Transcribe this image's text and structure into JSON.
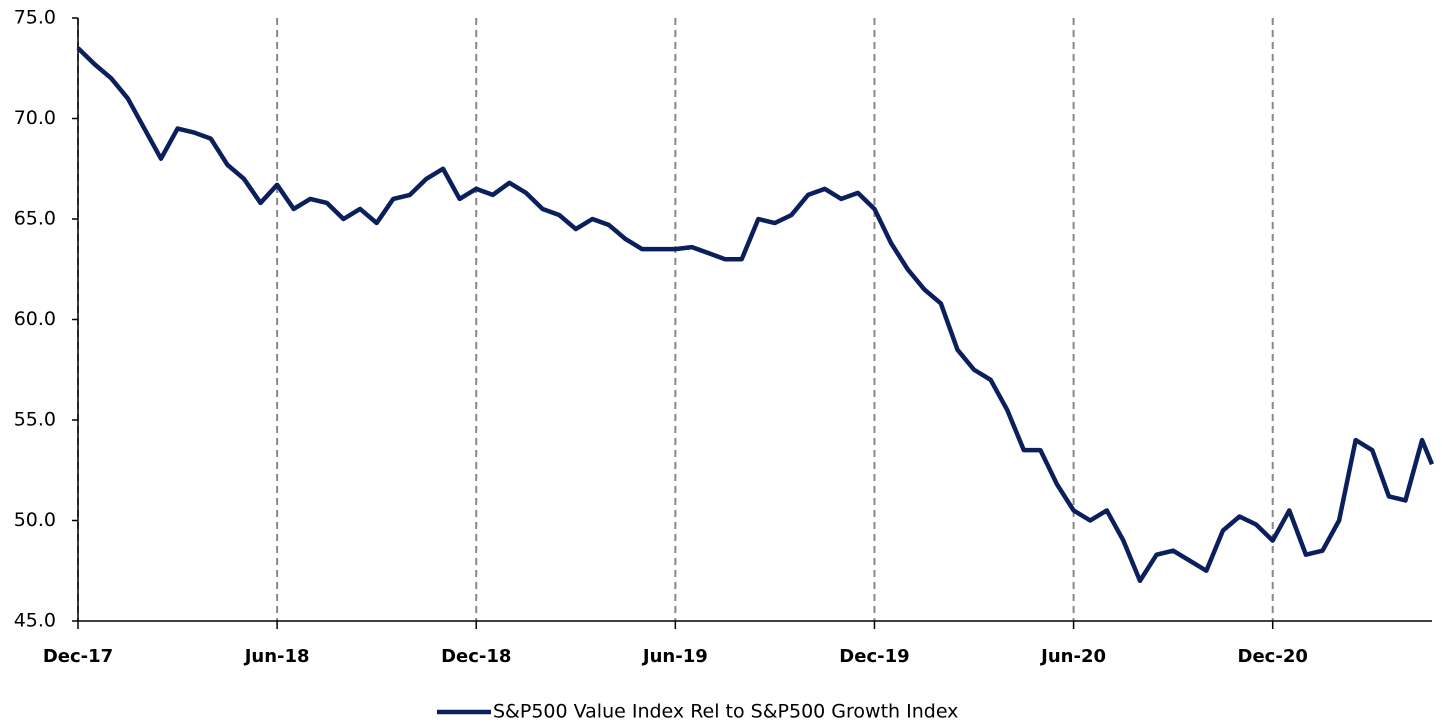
{
  "chart_data": {
    "type": "line",
    "x": [
      0,
      0.5,
      1,
      1.5,
      2,
      2.5,
      3,
      3.5,
      4,
      4.5,
      5,
      5.5,
      6,
      6.5,
      7,
      7.5,
      8,
      8.5,
      9,
      9.5,
      10,
      10.5,
      11,
      11.5,
      12,
      12.5,
      13,
      13.5,
      14,
      14.5,
      15,
      15.5,
      16,
      16.5,
      17,
      17.5,
      18,
      18.5,
      19,
      19.5,
      20,
      20.5,
      21,
      21.5,
      22,
      22.5,
      23,
      23.5,
      24,
      24.5,
      25,
      25.5,
      26,
      26.5,
      27,
      27.5,
      28,
      28.5,
      29,
      29.5,
      30,
      30.5,
      31,
      31.5,
      32,
      32.5,
      33,
      33.5,
      34,
      34.5,
      35,
      35.5,
      36,
      36.5,
      37,
      37.5,
      38,
      38.5,
      39,
      39.5,
      40,
      40.5,
      40.8
    ],
    "series": [
      {
        "name": "S&P500 Value Index Rel to S&P500 Growth Index",
        "color": "#0a1f5c",
        "values": [
          73.5,
          72.7,
          72.0,
          71.0,
          69.5,
          68.0,
          69.5,
          69.3,
          69.0,
          67.7,
          67.0,
          65.8,
          66.7,
          65.5,
          66.0,
          65.8,
          65.0,
          65.5,
          64.8,
          66.0,
          66.2,
          67.0,
          67.5,
          66.0,
          66.5,
          66.2,
          66.8,
          66.3,
          65.5,
          65.2,
          64.5,
          65.0,
          64.7,
          64.0,
          63.5,
          63.5,
          63.5,
          63.6,
          63.3,
          63.0,
          63.0,
          65.0,
          64.8,
          65.2,
          66.2,
          66.5,
          66.0,
          66.3,
          65.5,
          63.8,
          62.5,
          61.5,
          60.8,
          58.5,
          57.5,
          57.0,
          55.5,
          53.5,
          53.5,
          51.8,
          50.5,
          50.0,
          50.5,
          49.0,
          47.0,
          48.3,
          48.5,
          48.0,
          47.5,
          49.5,
          50.2,
          49.8,
          49.0,
          50.5,
          48.3,
          48.5,
          50.0,
          54.0,
          53.5,
          51.2,
          51.0,
          54.0,
          52.8
        ]
      }
    ],
    "xlim": [
      0,
      40.8
    ],
    "xticks": [
      {
        "value": 0,
        "label": "Dec-17"
      },
      {
        "value": 6,
        "label": "Jun-18"
      },
      {
        "value": 12,
        "label": "Dec-18"
      },
      {
        "value": 18,
        "label": "Jun-19"
      },
      {
        "value": 24,
        "label": "Dec-19"
      },
      {
        "value": 30,
        "label": "Jun-20"
      },
      {
        "value": 36,
        "label": "Dec-20"
      }
    ],
    "ylim": [
      45,
      75
    ],
    "yticks": [
      {
        "value": 45,
        "label": "45.0"
      },
      {
        "value": 50,
        "label": "50.0"
      },
      {
        "value": 55,
        "label": "55.0"
      },
      {
        "value": 60,
        "label": "60.0"
      },
      {
        "value": 65,
        "label": "65.0"
      },
      {
        "value": 70,
        "label": "70.0"
      },
      {
        "value": 75,
        "label": "75.0"
      }
    ],
    "grid": "x",
    "legend": "bottom"
  }
}
